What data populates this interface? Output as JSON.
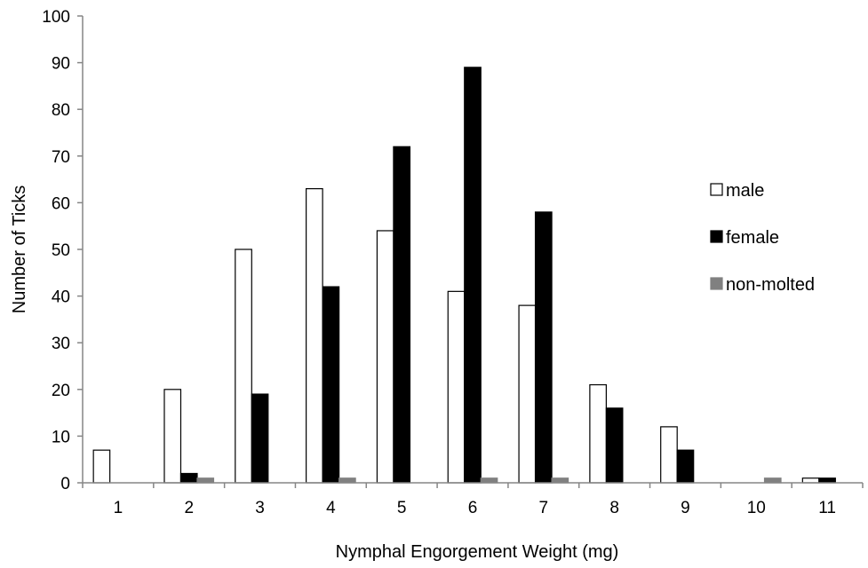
{
  "chart_data": {
    "type": "bar",
    "title": "",
    "xlabel": "Nymphal Engorgement Weight (mg)",
    "ylabel": "Number of Ticks",
    "ylim": [
      0,
      100
    ],
    "yticks": [
      "0",
      "10",
      "20",
      "30",
      "40",
      "50",
      "60",
      "70",
      "80",
      "90",
      "100"
    ],
    "categories": [
      "1",
      "2",
      "3",
      "4",
      "5",
      "6",
      "7",
      "8",
      "9",
      "10",
      "11"
    ],
    "grid": false,
    "legend_position": "right",
    "series": [
      {
        "name": "male",
        "fill": "#ffffff",
        "stroke": "#000000",
        "values": [
          7,
          20,
          50,
          63,
          54,
          41,
          38,
          21,
          12,
          0,
          1
        ]
      },
      {
        "name": "female",
        "fill": "#000000",
        "stroke": "#000000",
        "values": [
          0,
          2,
          19,
          42,
          72,
          89,
          58,
          16,
          7,
          0,
          1
        ]
      },
      {
        "name": "non-molted",
        "fill": "#808080",
        "stroke": "#808080",
        "values": [
          0,
          1,
          0,
          1,
          0,
          1,
          1,
          0,
          0,
          1,
          0
        ]
      }
    ]
  }
}
